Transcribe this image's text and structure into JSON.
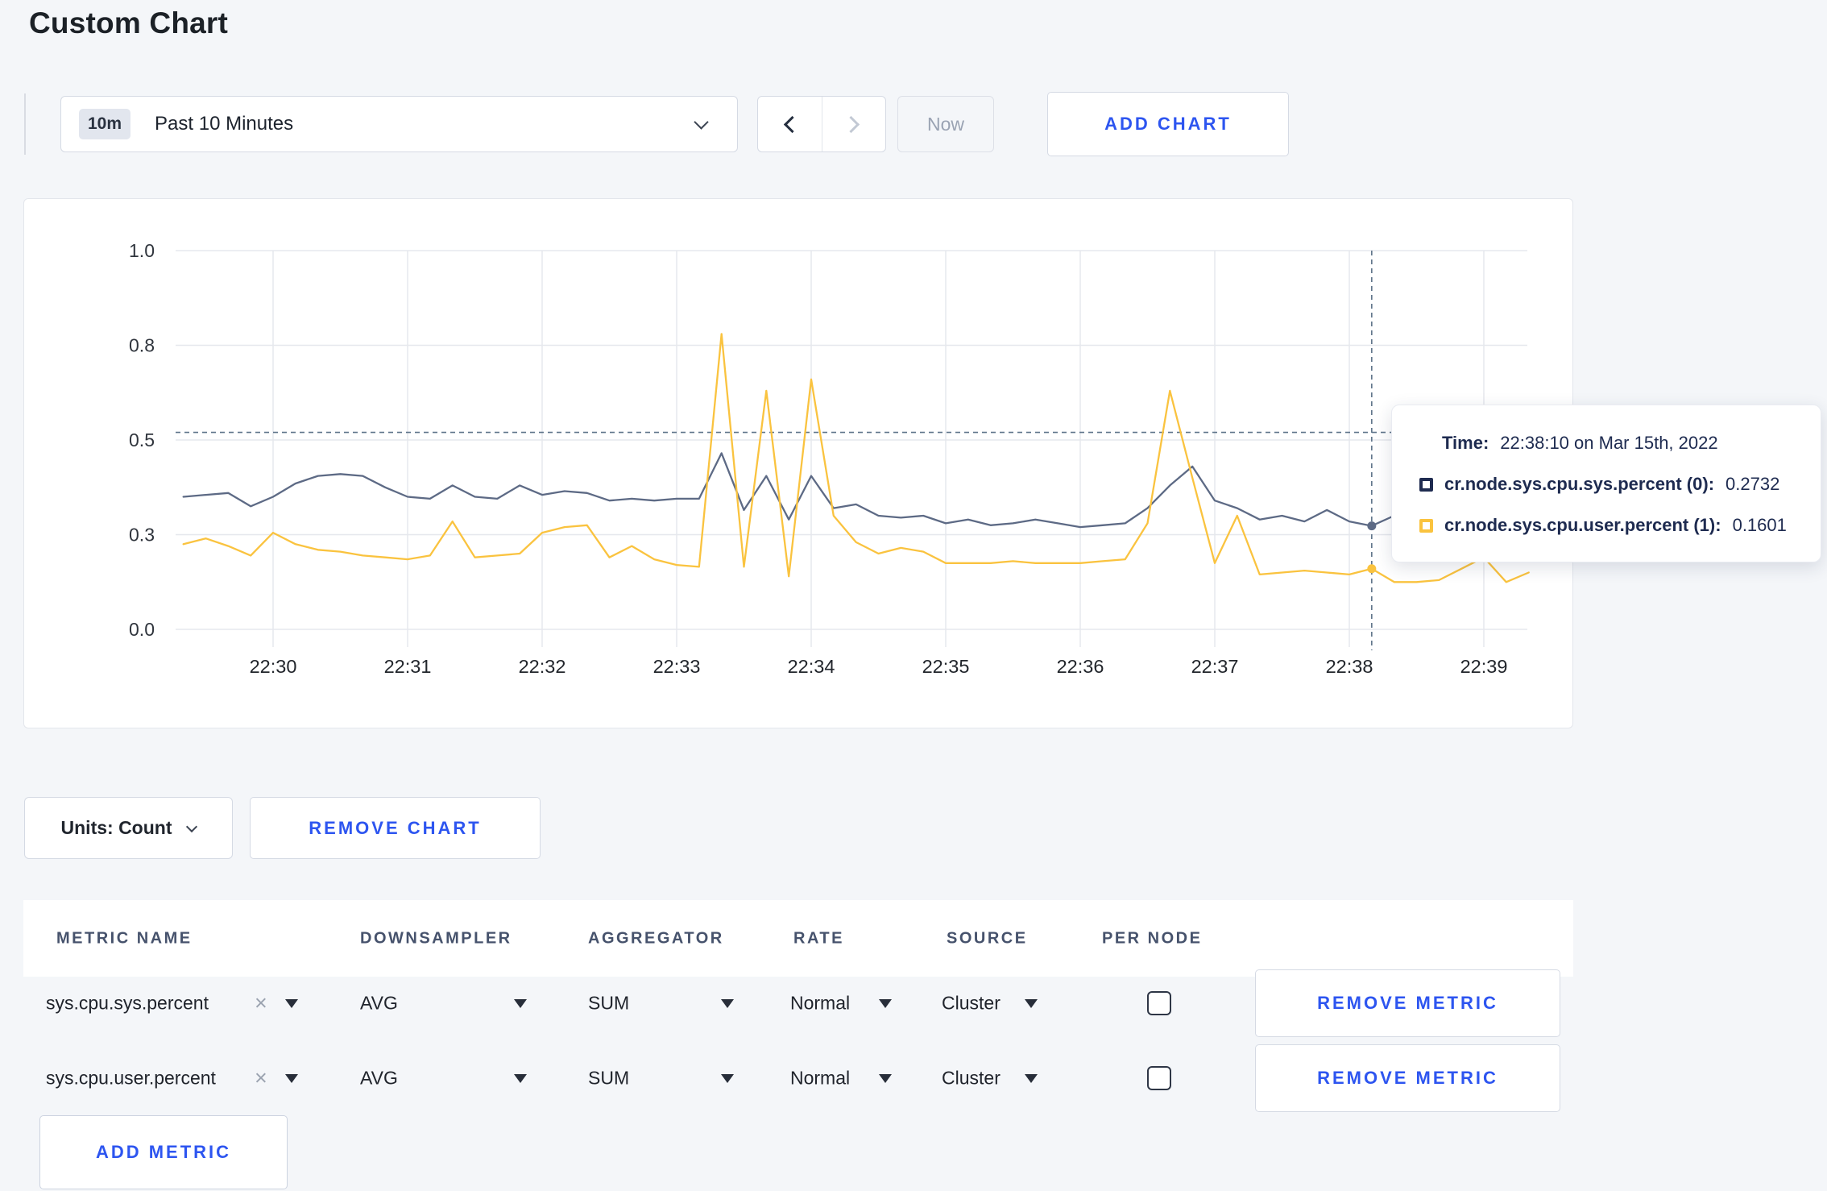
{
  "page": {
    "title": "Custom Chart",
    "background_color": "#f4f6f9",
    "accent_blue": "#2d55f0"
  },
  "toolbar": {
    "time_window_badge": "10m",
    "time_window_label": "Past 10 Minutes",
    "now_label": "Now",
    "add_chart_label": "ADD CHART"
  },
  "icons": {
    "remove_x": "×"
  },
  "chart_data": {
    "type": "line",
    "title": "",
    "xlabel": "",
    "ylabel": "",
    "ylim": [
      0,
      1
    ],
    "grid": true,
    "legend_position": "none",
    "x_ticks": [
      "22:30",
      "22:31",
      "22:32",
      "22:33",
      "22:34",
      "22:35",
      "22:36",
      "22:37",
      "22:38",
      "22:39"
    ],
    "y_ticks": [
      {
        "value": 0,
        "label": "0.0"
      },
      {
        "value": 0.25,
        "label": "0.3"
      },
      {
        "value": 0.5,
        "label": "0.5"
      },
      {
        "value": 0.75,
        "label": "0.8"
      },
      {
        "value": 1,
        "label": "1.0"
      }
    ],
    "x_start_time": "22:29:20",
    "x_start_offset_seconds": -40,
    "x_step_seconds": 10,
    "crosshair": {
      "index": 53,
      "time": "22:38:10",
      "y_value": 0.52
    },
    "series": [
      {
        "name": "cr.node.sys.cpu.sys.percent",
        "color": "#5d6a85",
        "values": [
          0.35,
          0.355,
          0.36,
          0.325,
          0.35,
          0.385,
          0.405,
          0.41,
          0.405,
          0.375,
          0.35,
          0.345,
          0.38,
          0.35,
          0.345,
          0.38,
          0.355,
          0.365,
          0.36,
          0.34,
          0.345,
          0.34,
          0.345,
          0.345,
          0.465,
          0.315,
          0.405,
          0.29,
          0.405,
          0.32,
          0.33,
          0.3,
          0.295,
          0.3,
          0.28,
          0.29,
          0.275,
          0.28,
          0.29,
          0.28,
          0.27,
          0.275,
          0.28,
          0.32,
          0.38,
          0.43,
          0.34,
          0.32,
          0.29,
          0.3,
          0.285,
          0.315,
          0.285,
          0.2732,
          0.3,
          0.285,
          0.3,
          0.29,
          0.285,
          0.295,
          0.295
        ]
      },
      {
        "name": "cr.node.sys.cpu.user.percent",
        "color": "#fac33f",
        "values": [
          0.225,
          0.24,
          0.22,
          0.195,
          0.255,
          0.225,
          0.21,
          0.205,
          0.195,
          0.19,
          0.185,
          0.195,
          0.285,
          0.19,
          0.195,
          0.2,
          0.255,
          0.27,
          0.275,
          0.19,
          0.22,
          0.185,
          0.17,
          0.165,
          0.78,
          0.165,
          0.63,
          0.14,
          0.66,
          0.3,
          0.23,
          0.2,
          0.215,
          0.205,
          0.175,
          0.175,
          0.175,
          0.18,
          0.175,
          0.175,
          0.175,
          0.18,
          0.185,
          0.28,
          0.63,
          0.4,
          0.175,
          0.3,
          0.145,
          0.15,
          0.155,
          0.15,
          0.145,
          0.1601,
          0.125,
          0.125,
          0.13,
          0.16,
          0.19,
          0.125,
          0.15
        ]
      }
    ]
  },
  "tooltip": {
    "time_label": "Time:",
    "time_value": "22:38:10 on Mar 15th, 2022",
    "rows": [
      {
        "name": "cr.node.sys.cpu.sys.percent (0):",
        "value": "0.2732",
        "color": "#1f2b50"
      },
      {
        "name": "cr.node.sys.cpu.user.percent (1):",
        "value": "0.1601",
        "color": "#fac33f"
      }
    ]
  },
  "chart_controls": {
    "units_label": "Units: Count",
    "remove_chart_label": "REMOVE CHART"
  },
  "metrics_table": {
    "headers": [
      "METRIC NAME",
      "DOWNSAMPLER",
      "AGGREGATOR",
      "RATE",
      "SOURCE",
      "PER NODE"
    ],
    "rows": [
      {
        "metric": "sys.cpu.sys.percent",
        "downsampler": "AVG",
        "aggregator": "SUM",
        "rate": "Normal",
        "source": "Cluster",
        "per_node_checked": false,
        "remove_label": "REMOVE METRIC"
      },
      {
        "metric": "sys.cpu.user.percent",
        "downsampler": "AVG",
        "aggregator": "SUM",
        "rate": "Normal",
        "source": "Cluster",
        "per_node_checked": false,
        "remove_label": "REMOVE METRIC"
      }
    ],
    "add_metric_label": "ADD METRIC"
  }
}
